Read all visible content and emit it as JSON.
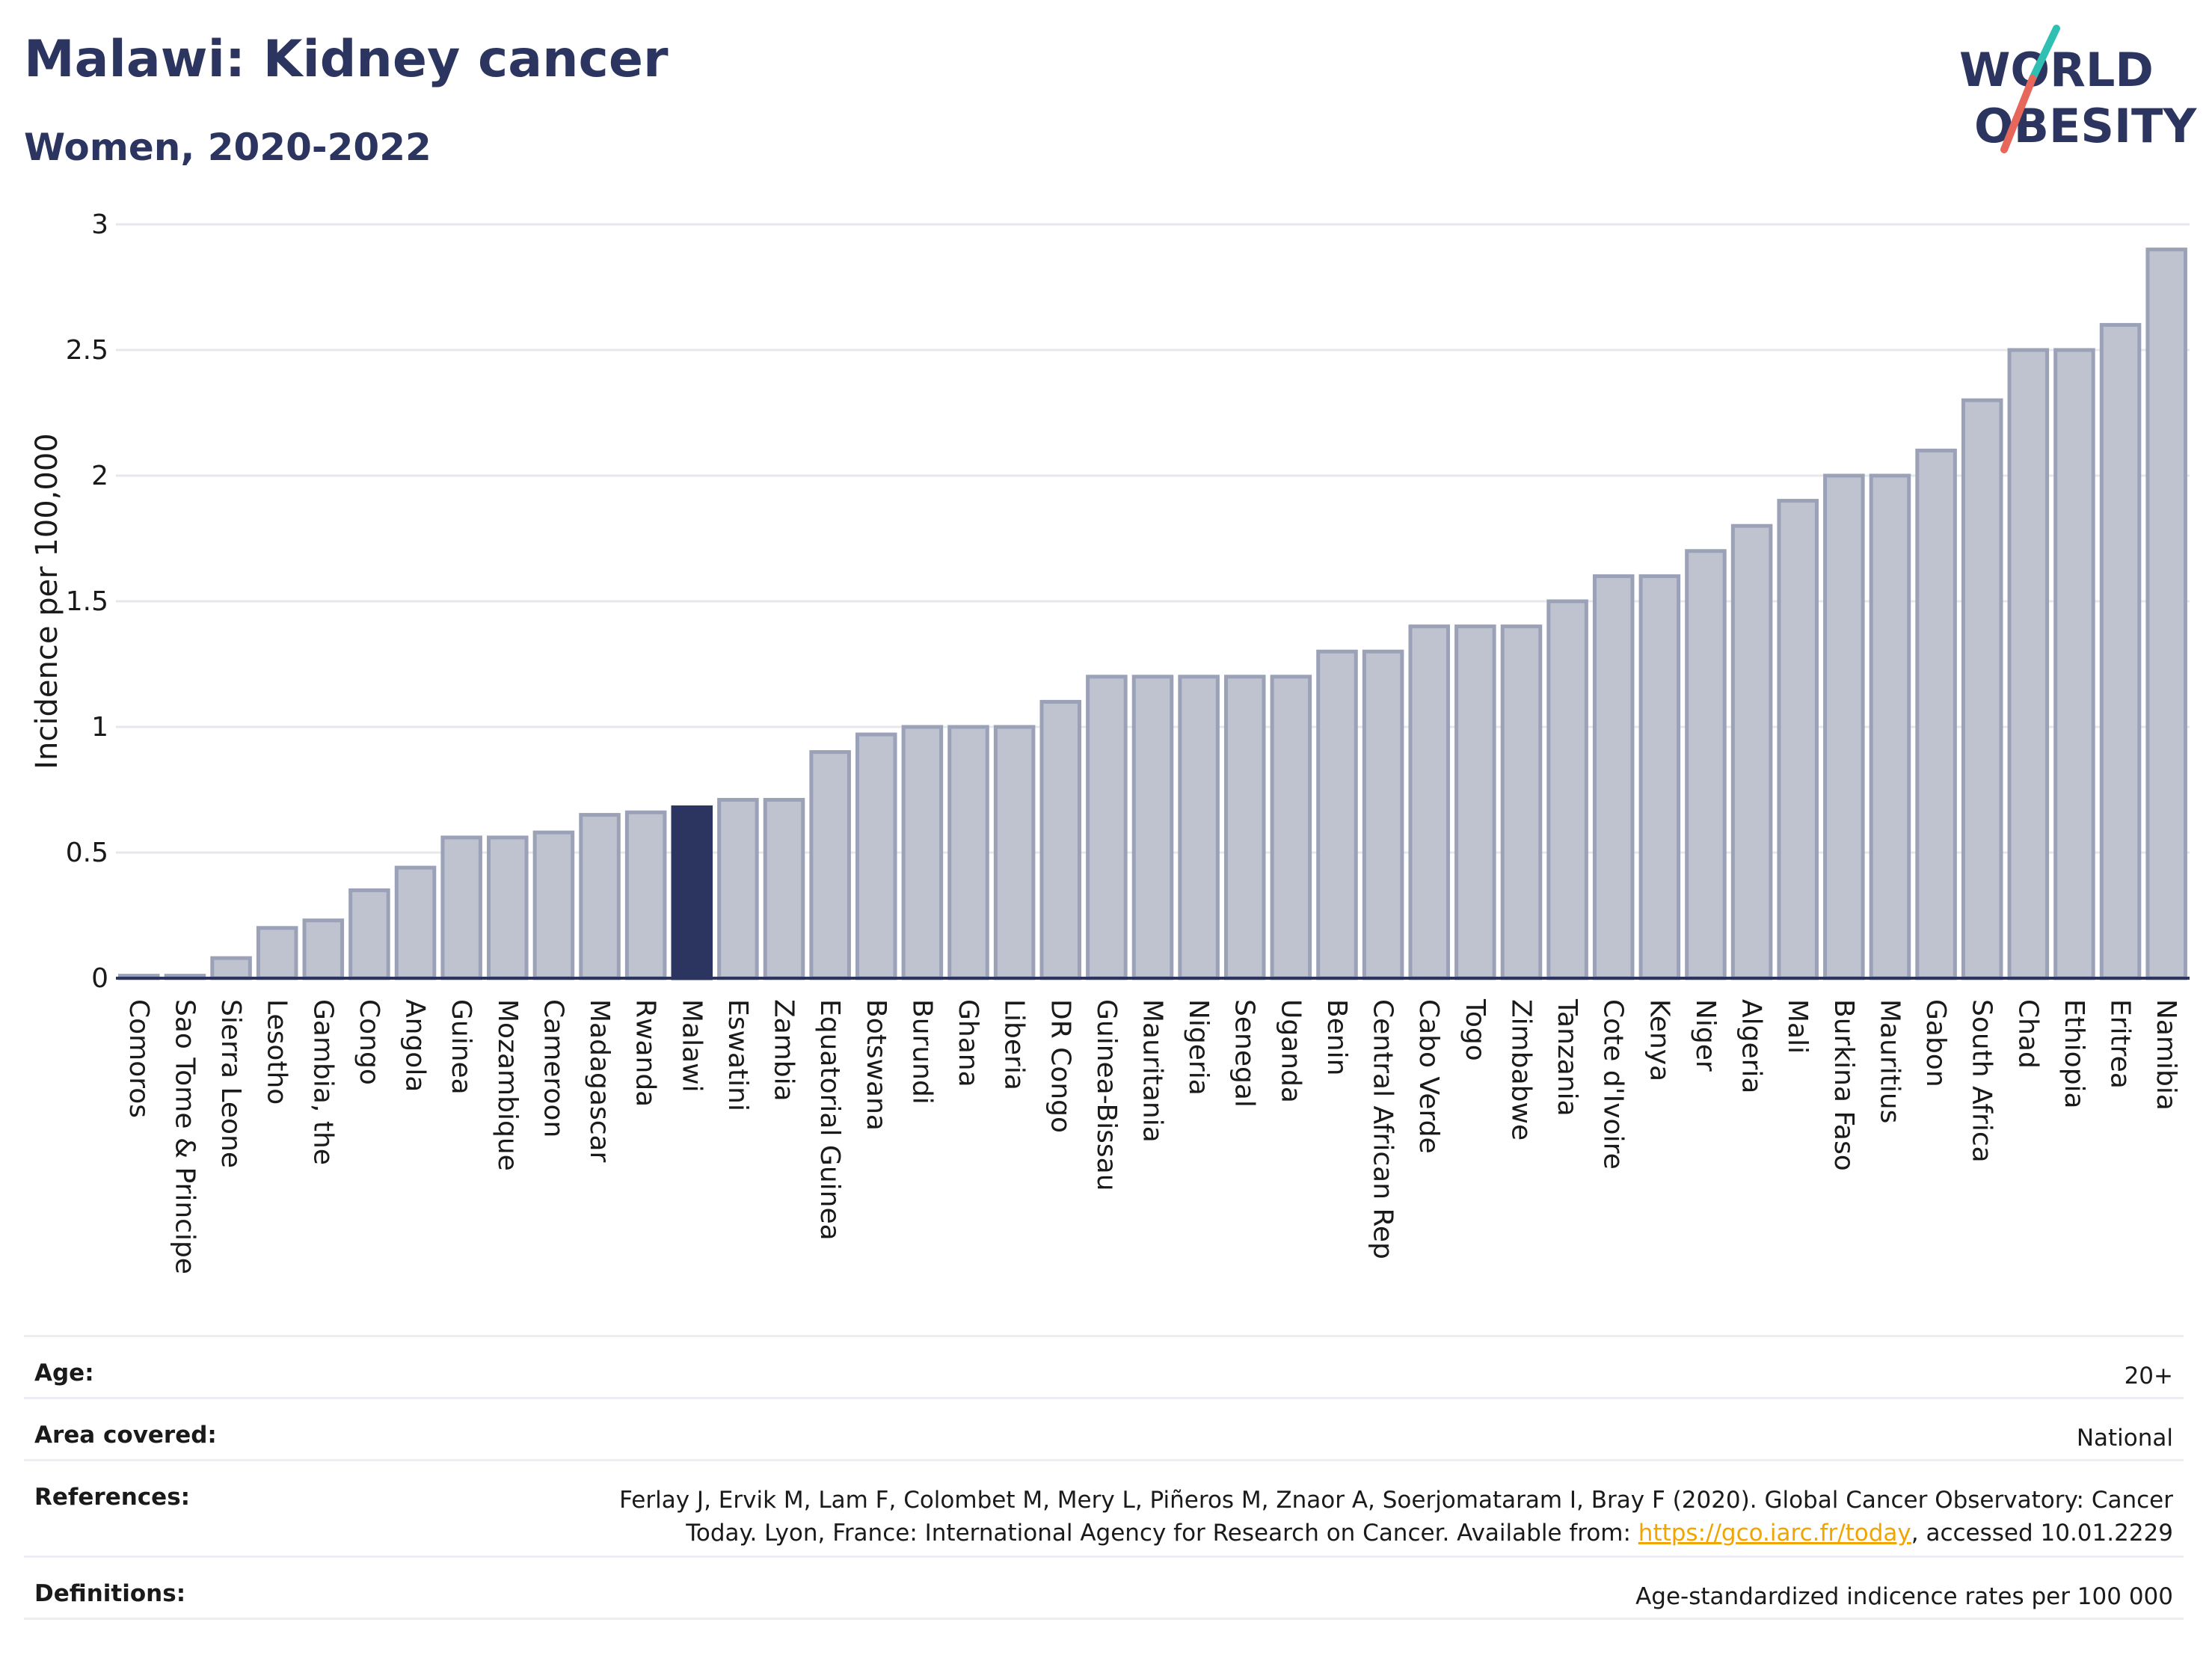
{
  "header": {
    "title": "Malawi: Kidney cancer",
    "subtitle": "Women, 2020-2022",
    "logo_line1": "WORLD",
    "logo_line2": "OBESITY"
  },
  "chart_data": {
    "type": "bar",
    "ylabel": "Incidence per 100,000",
    "xlabel": "",
    "ylim": [
      0,
      3
    ],
    "yticks": [
      0,
      0.5,
      1,
      1.5,
      2,
      2.5,
      3
    ],
    "ytick_labels": [
      "0",
      "0.5",
      "1",
      "1.5",
      "2",
      "2.5",
      "3"
    ],
    "grid": true,
    "highlight": "Malawi",
    "colors": {
      "bar": "#bfc3d0",
      "bar_edge": "#9ba1b6",
      "highlight": "#2b3560",
      "grid": "#e6e8ee",
      "axis": "#2b3560"
    },
    "categories": [
      "Comoros",
      "Sao Tome & Principe",
      "Sierra Leone",
      "Lesotho",
      "Gambia, the",
      "Congo",
      "Angola",
      "Guinea",
      "Mozambique",
      "Cameroon",
      "Madagascar",
      "Rwanda",
      "Malawi",
      "Eswatini",
      "Zambia",
      "Equatorial Guinea",
      "Botswana",
      "Burundi",
      "Ghana",
      "Liberia",
      "DR Congo",
      "Guinea-Bissau",
      "Mauritania",
      "Nigeria",
      "Senegal",
      "Uganda",
      "Benin",
      "Central African Rep",
      "Cabo Verde",
      "Togo",
      "Zimbabwe",
      "Tanzania",
      "Cote d'Ivoire",
      "Kenya",
      "Niger",
      "Algeria",
      "Mali",
      "Burkina Faso",
      "Mauritius",
      "Gabon",
      "South Africa",
      "Chad",
      "Ethiopia",
      "Eritrea",
      "Namibia"
    ],
    "values": [
      0.01,
      0.01,
      0.08,
      0.2,
      0.23,
      0.35,
      0.44,
      0.56,
      0.56,
      0.58,
      0.65,
      0.66,
      0.68,
      0.71,
      0.71,
      0.9,
      0.97,
      1.0,
      1.0,
      1.0,
      1.1,
      1.2,
      1.2,
      1.2,
      1.2,
      1.2,
      1.3,
      1.3,
      1.4,
      1.4,
      1.4,
      1.5,
      1.6,
      1.6,
      1.7,
      1.8,
      1.9,
      2.0,
      2.0,
      2.1,
      2.3,
      2.5,
      2.5,
      2.6,
      2.9
    ]
  },
  "meta": {
    "age_label": "Age:",
    "age_value": "20+",
    "area_label": "Area covered:",
    "area_value": "National",
    "references_label": "References:",
    "references_line1": "Ferlay J, Ervik M, Lam F, Colombet M, Mery L, Piñeros M, Znaor A, Soerjomataram I, Bray F (2020). Global Cancer Observatory: Cancer",
    "references_line2_pre": "Today. Lyon, France: International Agency for Research on Cancer. Available from: ",
    "references_link": "https://gco.iarc.fr/today",
    "references_line2_post": ", accessed 10.01.2229",
    "definitions_label": "Definitions:",
    "definitions_value": "Age-standardized indicence rates per 100 000"
  }
}
